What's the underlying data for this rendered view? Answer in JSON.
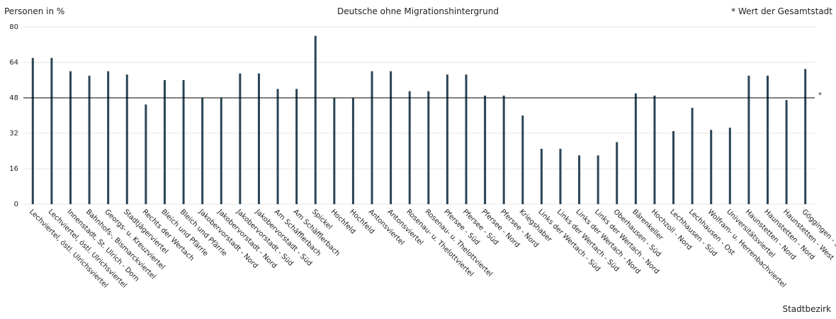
{
  "chart_data": {
    "type": "bar",
    "title": "Deutsche ohne Migrationshintergrund",
    "y_label": "Personen in %",
    "x_label": "Stadtbezirk",
    "legend_note": "* Wert der Gesamtstadt",
    "reference_line": {
      "value": 48,
      "label": "*"
    },
    "categories": [
      "Lechviertel, östl. Ulrichsviertel",
      "Lechviertel, östl. Ulrichsviertel",
      "Innenstadt, St. Ulrich - Dom",
      "Bahnhofs-, Bismarckviertel",
      "Georgs- u. Kreuzviertel",
      "Stadtjägerviertel",
      "Rechts der Wertach",
      "Bleich und Pfärrle",
      "Bleich und Pfärrle",
      "Jakobervorstadt - Nord",
      "Jakobervorstadt - Nord",
      "Jakobervorstadt - Süd",
      "Jakobervorstadt - Süd",
      "Am Schäfflerbach",
      "Am Schäfflerbach",
      "Spickel",
      "Hochfeld",
      "Hochfeld",
      "Antonsviertel",
      "Antonsviertel",
      "Rosenau- u. Thelottviertel",
      "Rosenau- u. Thelottviertel",
      "Pfersee - Süd",
      "Pfersee - Süd",
      "Pfersee - Nord",
      "Pfersee - Nord",
      "Kriegshaber",
      "Links der Wertach - Süd",
      "Links der Wertach - Süd",
      "Links der Wertach - Nord",
      "Links der Wertach - Nord",
      "Oberhausen - Süd",
      "Bärenkeller",
      "Hochzoll - Nord",
      "Lechhausen - Süd",
      "Lechhausen - Ost",
      "Wolfram- u. Herrenbachviertel",
      "Universitätsviertel",
      "Haunstetten - Nord",
      "Haunstetten - Nord",
      "Haunstetten - West",
      "Göggingen - Süd"
    ],
    "values": [
      66,
      66,
      60,
      58,
      60,
      58.5,
      45,
      56,
      56,
      48,
      48,
      59,
      59,
      52,
      52,
      76,
      48,
      48,
      60,
      60,
      51,
      51,
      58.5,
      58.5,
      49,
      49,
      40,
      25,
      25,
      22,
      22,
      28,
      50,
      49,
      33,
      43.5,
      33.5,
      34.5,
      58,
      58,
      47,
      61
    ],
    "color": "#2a4455",
    "ylim": [
      0,
      80
    ],
    "yticks": [
      0,
      16,
      32,
      48,
      64,
      80
    ],
    "grid": true
  }
}
